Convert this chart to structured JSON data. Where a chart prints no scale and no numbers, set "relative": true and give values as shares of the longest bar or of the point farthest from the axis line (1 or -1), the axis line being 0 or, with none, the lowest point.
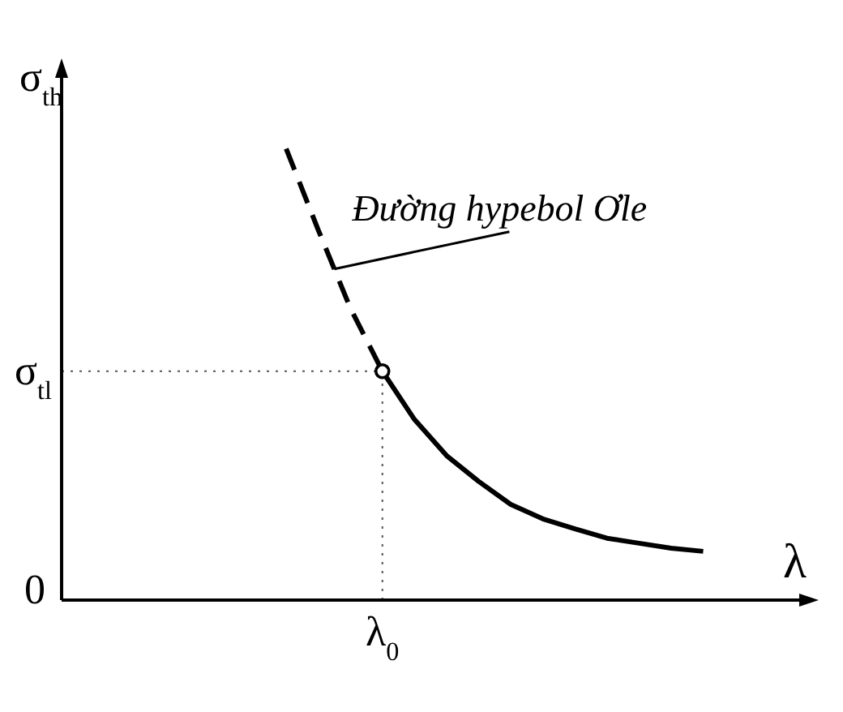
{
  "chart_data": {
    "type": "line",
    "relative": true,
    "xlabel": "λ",
    "ylabel": "σ$_{th}$",
    "categories": [
      null,
      null,
      null,
      null,
      null,
      null,
      null,
      null,
      null,
      null,
      null,
      null,
      null,
      null,
      null,
      null,
      null,
      null,
      null,
      null,
      null,
      null,
      null,
      null
    ],
    "series": [
      {
        "color": "#000000",
        "line_style": "dashed",
        "values": [
          null,
          null,
          null,
          null,
          null,
          null,
          null,
          1,
          0.82,
          0.647,
          0.507,
          null,
          null,
          null,
          null,
          null,
          null,
          null,
          null,
          null,
          null,
          null,
          null,
          null
        ]
      },
      {
        "color": "#000000",
        "line_style": "solid",
        "values": [
          null,
          null,
          null,
          null,
          null,
          null,
          null,
          null,
          null,
          null,
          0.507,
          0.4,
          0.32,
          0.263,
          0.212,
          0.18,
          0.158,
          0.137,
          0.126,
          0.115,
          0.108,
          null,
          null,
          null
        ]
      }
    ],
    "ref_lines": [
      {
        "axis": "y",
        "value": 0.507,
        "label": "σ$_{tl}$",
        "line_style": "dotted"
      }
    ],
    "annotations": [
      "Đường hypebol Ơle",
      "0",
      "λ$_{0}$"
    ]
  }
}
